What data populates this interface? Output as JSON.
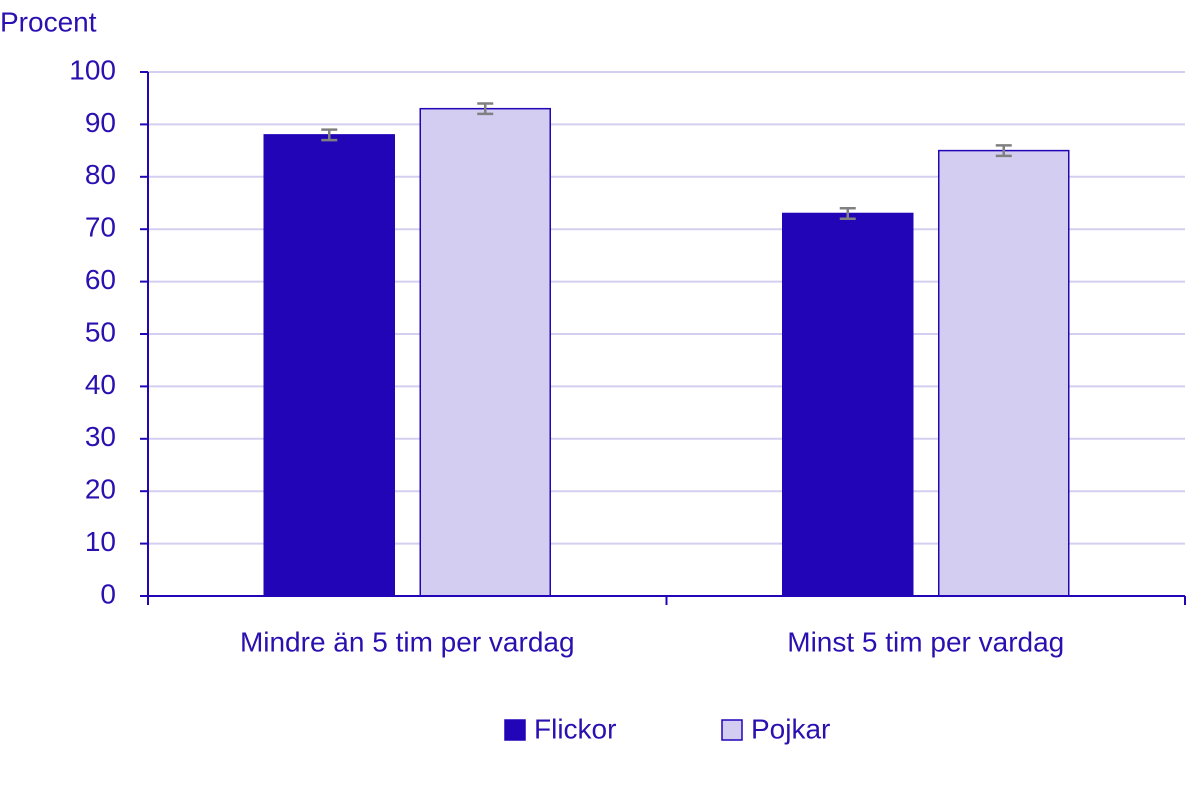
{
  "chart_data": {
    "type": "bar",
    "y_axis_label": "Procent",
    "categories": [
      "Mindre än 5 tim per vardag",
      "Minst 5 tim per vardag"
    ],
    "series": [
      {
        "name": "Flickor",
        "color": "#2305b8",
        "values": [
          88,
          73
        ],
        "errors": [
          1,
          1
        ]
      },
      {
        "name": "Pojkar",
        "color": "#d3cdf1",
        "values": [
          93,
          85
        ],
        "errors": [
          1,
          1
        ]
      }
    ],
    "ylim": [
      0,
      100
    ],
    "yticks": [
      0,
      10,
      20,
      30,
      40,
      50,
      60,
      70,
      80,
      90,
      100
    ],
    "grid": true,
    "legend": "bottom",
    "error_color": "#808080"
  }
}
